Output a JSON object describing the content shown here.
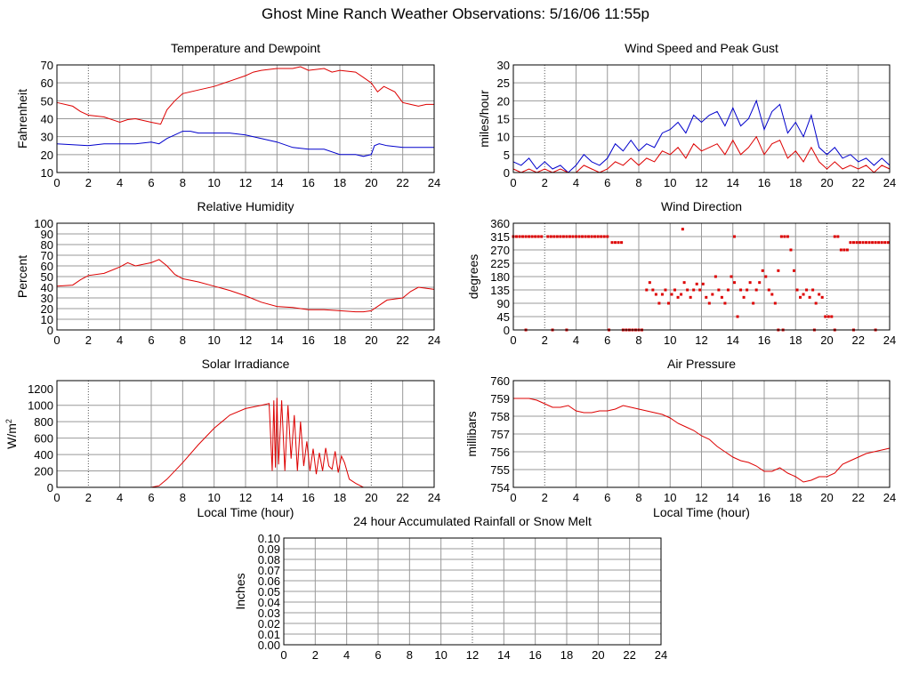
{
  "page": {
    "title": "Ghost Mine Ranch Weather Observations: 5/16/06 11:55p"
  },
  "chart_data": [
    {
      "id": "temp",
      "type": "line",
      "title": "Temperature and Dewpoint",
      "xlabel": "",
      "ylabel": "Fahrenheit",
      "xlim": [
        0,
        24
      ],
      "ylim": [
        10,
        70
      ],
      "xticks": [
        0,
        2,
        4,
        6,
        8,
        10,
        12,
        14,
        16,
        18,
        20,
        22,
        24
      ],
      "yticks": [
        10,
        20,
        30,
        40,
        50,
        60,
        70
      ],
      "series": [
        {
          "color": "#dd0000",
          "x": [
            0,
            1,
            1.5,
            2,
            3,
            4,
            4.5,
            5,
            6,
            6.6,
            7,
            7.5,
            8,
            9,
            10,
            11,
            12,
            12.5,
            13,
            14,
            15,
            15.5,
            16,
            17,
            17.5,
            18,
            19,
            19.5,
            20,
            20.4,
            20.8,
            21.5,
            22,
            22.5,
            23,
            23.5,
            24
          ],
          "y": [
            49,
            47,
            44,
            42,
            41,
            38,
            39.5,
            40,
            38,
            37,
            45,
            50,
            54,
            56,
            58,
            61,
            64,
            66,
            67,
            68,
            68,
            69,
            67,
            68,
            66,
            67,
            66,
            63,
            60,
            55,
            58,
            55,
            49,
            48,
            47,
            48,
            48
          ]
        },
        {
          "color": "#0000cc",
          "x": [
            0,
            1,
            2,
            3,
            4,
            5,
            6,
            6.5,
            7,
            7.5,
            8,
            8.5,
            9,
            10,
            11,
            12,
            13,
            14,
            15,
            16,
            17,
            18,
            19,
            19.5,
            20,
            20.2,
            20.5,
            21,
            22,
            23,
            24
          ],
          "y": [
            26,
            25.5,
            25,
            26,
            26,
            26,
            27,
            26,
            29,
            31,
            33,
            33,
            32,
            32,
            32,
            31,
            29,
            27,
            24,
            23,
            23,
            20,
            20,
            19,
            20,
            25,
            26,
            25,
            24,
            24,
            24
          ]
        }
      ]
    },
    {
      "id": "wind",
      "type": "line",
      "title": "Wind Speed and Peak Gust",
      "xlabel": "",
      "ylabel": "miles/hour",
      "xlim": [
        0,
        24
      ],
      "ylim": [
        0,
        30
      ],
      "xticks": [
        0,
        2,
        4,
        6,
        8,
        10,
        12,
        14,
        16,
        18,
        20,
        22,
        24
      ],
      "yticks": [
        0,
        5,
        10,
        15,
        20,
        25,
        30
      ],
      "series": [
        {
          "color": "#0000cc",
          "x": [
            0,
            0.5,
            1,
            1.5,
            2,
            2.5,
            3,
            3.5,
            4,
            4.5,
            5,
            5.5,
            6,
            6.5,
            7,
            7.5,
            8,
            8.5,
            9,
            9.5,
            10,
            10.5,
            11,
            11.5,
            12,
            12.5,
            13,
            13.5,
            14,
            14.5,
            15,
            15.5,
            16,
            16.5,
            17,
            17.5,
            18,
            18.5,
            19,
            19.5,
            20,
            20.5,
            21,
            21.5,
            22,
            22.5,
            23,
            23.5,
            24
          ],
          "y": [
            3,
            2,
            4,
            1,
            3,
            1,
            2,
            0,
            2,
            5,
            3,
            2,
            4,
            8,
            6,
            9,
            6,
            8,
            7,
            11,
            12,
            14,
            11,
            16,
            14,
            16,
            17,
            13,
            18,
            13,
            15,
            20,
            12,
            17,
            19,
            11,
            14,
            10,
            16,
            7,
            5,
            7,
            4,
            5,
            3,
            4,
            2,
            4,
            2
          ]
        },
        {
          "color": "#dd0000",
          "x": [
            0,
            0.5,
            1,
            1.5,
            2,
            2.5,
            3,
            3.5,
            4,
            4.5,
            5,
            5.5,
            6,
            6.5,
            7,
            7.5,
            8,
            8.5,
            9,
            9.5,
            10,
            10.5,
            11,
            11.5,
            12,
            12.5,
            13,
            13.5,
            14,
            14.5,
            15,
            15.5,
            16,
            16.5,
            17,
            17.5,
            18,
            18.5,
            19,
            19.5,
            20,
            20.5,
            21,
            21.5,
            22,
            22.5,
            23,
            23.5,
            24
          ],
          "y": [
            1,
            0,
            1,
            0,
            1,
            0,
            1,
            0,
            0,
            2,
            1,
            0,
            1,
            3,
            2,
            4,
            2,
            4,
            3,
            6,
            5,
            7,
            4,
            8,
            6,
            7,
            8,
            5,
            9,
            5,
            7,
            10,
            5,
            8,
            9,
            4,
            6,
            3,
            7,
            3,
            1,
            3,
            1,
            2,
            1,
            2,
            0,
            2,
            1
          ]
        }
      ]
    },
    {
      "id": "rh",
      "type": "line",
      "title": "Relative Humidity",
      "xlabel": "",
      "ylabel": "Percent",
      "xlim": [
        0,
        24
      ],
      "ylim": [
        0,
        100
      ],
      "xticks": [
        0,
        2,
        4,
        6,
        8,
        10,
        12,
        14,
        16,
        18,
        20,
        22,
        24
      ],
      "yticks": [
        0,
        10,
        20,
        30,
        40,
        50,
        60,
        70,
        80,
        90,
        100
      ],
      "series": [
        {
          "color": "#dd0000",
          "x": [
            0,
            1,
            1.5,
            2,
            3,
            4,
            4.5,
            5,
            6,
            6.5,
            7,
            7.5,
            8,
            9,
            10,
            11,
            12,
            13,
            14,
            15,
            16,
            17,
            18,
            19,
            19.5,
            20,
            21,
            22,
            22.5,
            23,
            24
          ],
          "y": [
            41,
            42,
            47,
            51,
            53,
            59,
            63,
            60,
            63,
            66,
            60,
            52,
            48,
            45,
            41,
            37,
            32,
            26,
            22,
            21,
            19,
            19,
            18,
            17,
            17,
            18,
            28,
            30,
            36,
            40,
            38
          ]
        }
      ]
    },
    {
      "id": "dir",
      "type": "scatter",
      "title": "Wind Direction",
      "xlabel": "",
      "ylabel": "degrees",
      "xlim": [
        0,
        24
      ],
      "ylim": [
        0,
        360
      ],
      "xticks": [
        0,
        2,
        4,
        6,
        8,
        10,
        12,
        14,
        16,
        18,
        20,
        22,
        24
      ],
      "yticks": [
        0,
        45,
        90,
        135,
        180,
        225,
        270,
        315,
        360
      ],
      "series": [
        {
          "color": "#dd0000",
          "x": [
            0,
            0.2,
            0.4,
            0.6,
            0.8,
            1,
            1.2,
            1.4,
            1.6,
            1.8,
            2.2,
            2.4,
            2.6,
            2.8,
            3,
            3.2,
            3.4,
            3.6,
            3.8,
            4,
            4.2,
            4.4,
            4.6,
            4.8,
            5,
            5.2,
            5.4,
            5.6,
            5.8,
            6,
            6.3,
            6.5,
            6.7,
            6.9,
            7,
            7.2,
            7.4,
            7.6,
            7.8,
            8,
            8.2,
            8.5,
            8.7,
            8.9,
            9.1,
            9.3,
            9.5,
            9.7,
            9.9,
            10.1,
            10.3,
            10.5,
            10.7,
            10.9,
            11.1,
            11.3,
            11.5,
            11.7,
            11.9,
            12.1,
            12.3,
            12.5,
            12.7,
            12.9,
            13.1,
            13.3,
            13.5,
            13.7,
            13.9,
            14.1,
            14.3,
            14.5,
            14.7,
            14.9,
            15.1,
            15.3,
            15.5,
            15.7,
            15.9,
            16.1,
            16.3,
            16.5,
            16.7,
            16.9,
            17.1,
            17.3,
            17.5,
            17.7,
            17.9,
            18.1,
            18.3,
            18.5,
            18.7,
            18.9,
            19.1,
            19.3,
            19.5,
            19.7,
            19.9,
            20.1,
            20.3,
            20.5,
            20.7,
            20.9,
            21.1,
            21.3,
            21.5,
            21.7,
            21.9,
            22.1,
            22.3,
            22.5,
            22.7,
            22.9,
            23.1,
            23.3,
            23.5,
            23.7,
            23.9,
            0.8,
            2.5,
            3.4,
            6.1,
            10.8,
            14.1,
            16.9,
            17.2,
            19.2,
            20.5,
            21.7,
            23.1
          ],
          "y": [
            315,
            315,
            315,
            315,
            315,
            315,
            315,
            315,
            315,
            315,
            315,
            315,
            315,
            315,
            315,
            315,
            315,
            315,
            315,
            315,
            315,
            315,
            315,
            315,
            315,
            315,
            315,
            315,
            315,
            315,
            295,
            295,
            295,
            295,
            0,
            0,
            0,
            0,
            0,
            0,
            0,
            135,
            160,
            135,
            120,
            90,
            120,
            135,
            90,
            120,
            135,
            110,
            120,
            160,
            135,
            110,
            135,
            155,
            135,
            155,
            110,
            90,
            120,
            180,
            135,
            110,
            90,
            135,
            180,
            160,
            45,
            135,
            110,
            135,
            160,
            90,
            135,
            160,
            200,
            180,
            135,
            120,
            90,
            200,
            315,
            315,
            315,
            270,
            200,
            135,
            110,
            120,
            135,
            110,
            135,
            90,
            120,
            110,
            45,
            45,
            45,
            315,
            315,
            270,
            270,
            270,
            295,
            295,
            295,
            295,
            295,
            295,
            295,
            295,
            295,
            295,
            295,
            295,
            295,
            0,
            0,
            0,
            0,
            340,
            315,
            0,
            0,
            0,
            0,
            0,
            0
          ]
        }
      ]
    },
    {
      "id": "solar",
      "type": "line",
      "title": "Solar Irradiance",
      "xlabel": "Local Time (hour)",
      "ylabel": "W/m",
      "ylabel_sup": "2",
      "xlim": [
        0,
        24
      ],
      "ylim": [
        0,
        1300
      ],
      "xticks": [
        0,
        2,
        4,
        6,
        8,
        10,
        12,
        14,
        16,
        18,
        20,
        22,
        24
      ],
      "yticks": [
        0,
        200,
        400,
        600,
        800,
        1000,
        1200
      ],
      "series": [
        {
          "color": "#dd0000",
          "x": [
            0,
            6,
            6.5,
            7,
            8,
            9,
            10,
            11,
            12,
            13,
            13.5,
            13.7,
            13.8,
            13.9,
            14,
            14.1,
            14.3,
            14.5,
            14.7,
            14.9,
            15.1,
            15.3,
            15.5,
            15.7,
            15.9,
            16.1,
            16.3,
            16.5,
            16.7,
            16.9,
            17.1,
            17.3,
            17.5,
            17.7,
            17.9,
            18.1,
            18.3,
            18.6,
            19,
            19.5,
            20,
            24
          ],
          "y": [
            0,
            0,
            20,
            100,
            300,
            520,
            720,
            880,
            960,
            1000,
            1020,
            200,
            1060,
            240,
            1090,
            280,
            1060,
            200,
            1000,
            350,
            880,
            200,
            800,
            260,
            560,
            200,
            470,
            160,
            420,
            200,
            480,
            260,
            220,
            440,
            180,
            380,
            300,
            100,
            50,
            0,
            0,
            0
          ]
        }
      ]
    },
    {
      "id": "pressure",
      "type": "line",
      "title": "Air Pressure",
      "xlabel": "Local Time (hour)",
      "ylabel": "millibars",
      "xlim": [
        0,
        24
      ],
      "ylim": [
        754,
        760
      ],
      "xticks": [
        0,
        2,
        4,
        6,
        8,
        10,
        12,
        14,
        16,
        18,
        20,
        22,
        24
      ],
      "yticks": [
        754,
        755,
        756,
        757,
        758,
        759,
        760
      ],
      "series": [
        {
          "color": "#dd0000",
          "x": [
            0,
            1,
            1.5,
            2,
            2.5,
            3,
            3.5,
            4,
            4.5,
            5,
            5.5,
            6,
            6.5,
            7,
            7.5,
            8,
            8.5,
            9,
            9.5,
            10,
            10.5,
            11,
            11.5,
            12,
            12.5,
            13,
            13.5,
            14,
            14.5,
            15,
            15.5,
            16,
            16.5,
            17,
            17.5,
            18,
            18.5,
            19,
            19.5,
            20,
            20.5,
            21,
            21.5,
            22,
            22.5,
            23,
            23.5,
            24
          ],
          "y": [
            759,
            759,
            758.9,
            758.7,
            758.5,
            758.5,
            758.6,
            758.3,
            758.2,
            758.2,
            758.3,
            758.3,
            758.4,
            758.6,
            758.5,
            758.4,
            758.3,
            758.2,
            758.1,
            757.9,
            757.6,
            757.4,
            757.2,
            756.9,
            756.7,
            756.3,
            756,
            755.7,
            755.5,
            755.4,
            755.2,
            754.9,
            754.9,
            755.1,
            754.8,
            754.6,
            754.3,
            754.4,
            754.6,
            754.6,
            754.8,
            755.3,
            755.5,
            755.7,
            755.9,
            756,
            756.1,
            756.2
          ]
        }
      ]
    },
    {
      "id": "rain",
      "type": "line",
      "title": "24 hour Accumulated Rainfall or Snow Melt",
      "xlabel": "",
      "ylabel": "Inches",
      "xlim": [
        0,
        24
      ],
      "ylim": [
        0,
        0.1
      ],
      "xticks": [
        0,
        2,
        4,
        6,
        8,
        10,
        12,
        14,
        16,
        18,
        20,
        22,
        24
      ],
      "yticks": [
        0.0,
        0.01,
        0.02,
        0.03,
        0.04,
        0.05,
        0.06,
        0.07,
        0.08,
        0.09,
        0.1
      ],
      "ytick_labels": [
        "0.00",
        "0.01",
        "0.02",
        "0.03",
        "0.04",
        "0.05",
        "0.06",
        "0.07",
        "0.08",
        "0.09",
        "0.10"
      ],
      "series": [
        {
          "color": "#dd0000",
          "x": [
            0,
            24
          ],
          "y": [
            0,
            0
          ]
        }
      ]
    }
  ]
}
